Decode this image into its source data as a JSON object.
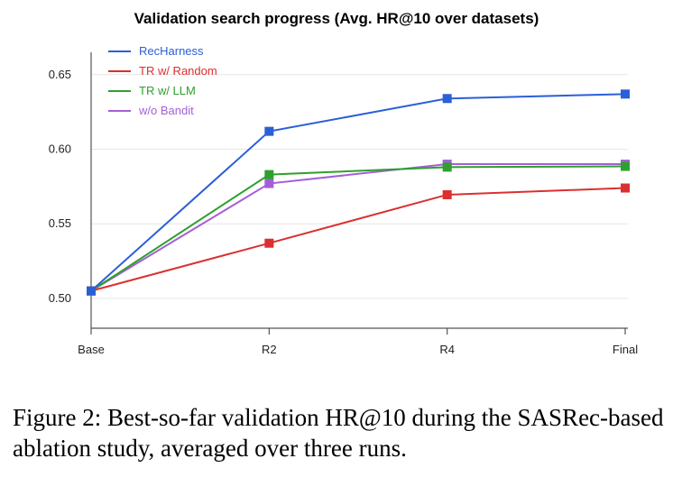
{
  "chart_data": {
    "type": "line",
    "title": "Validation search progress (Avg. HR@10 over datasets)",
    "categories": [
      "Base",
      "R2",
      "R4",
      "Final"
    ],
    "ylim": [
      0.48,
      0.665
    ],
    "yticks": [
      0.5,
      0.55,
      0.6,
      0.65
    ],
    "ytick_labels": [
      "0.50",
      "0.55",
      "0.60",
      "0.65"
    ],
    "grid": "horizontal",
    "legend_position": "top-left",
    "series": [
      {
        "name": "RecHarness",
        "color": "#2a5fd6",
        "values": [
          0.505,
          0.612,
          0.634,
          0.637
        ]
      },
      {
        "name": "TR w/ Random",
        "color": "#dc2f2f",
        "values": [
          0.505,
          0.537,
          0.5695,
          0.574
        ]
      },
      {
        "name": "TR w/ LLM",
        "color": "#2ea02e",
        "values": [
          0.505,
          0.583,
          0.588,
          0.5885
        ]
      },
      {
        "name": "w/o Bandit",
        "color": "#a45fd6",
        "values": [
          0.505,
          0.577,
          0.59,
          0.59
        ]
      }
    ]
  },
  "caption": "Figure 2: Best-so-far validation HR@10 during the SASRec-based ablation study, averaged over three runs."
}
